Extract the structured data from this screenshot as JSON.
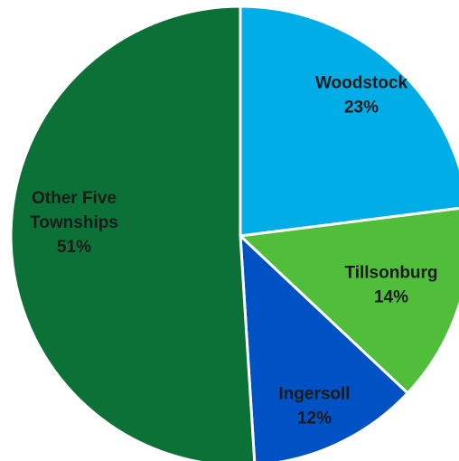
{
  "chart_data": {
    "type": "pie",
    "start_angle_deg": 0,
    "direction": "clockwise",
    "slices": [
      {
        "label": "Woodstock",
        "value": 23,
        "value_label": "23%",
        "color": "#00ADE6"
      },
      {
        "label": "Tillsonburg",
        "value": 14,
        "value_label": "14%",
        "color": "#51BE3B"
      },
      {
        "label": "Ingersoll",
        "value": 12,
        "value_label": "12%",
        "color": "#0052C4"
      },
      {
        "label": "Other Five Townships",
        "label_lines": [
          "Other Five",
          "Townships"
        ],
        "value": 51,
        "value_label": "51%",
        "color": "#0C7136"
      }
    ],
    "border_color": "#ffffff",
    "text_color": "#1a1a1a"
  }
}
